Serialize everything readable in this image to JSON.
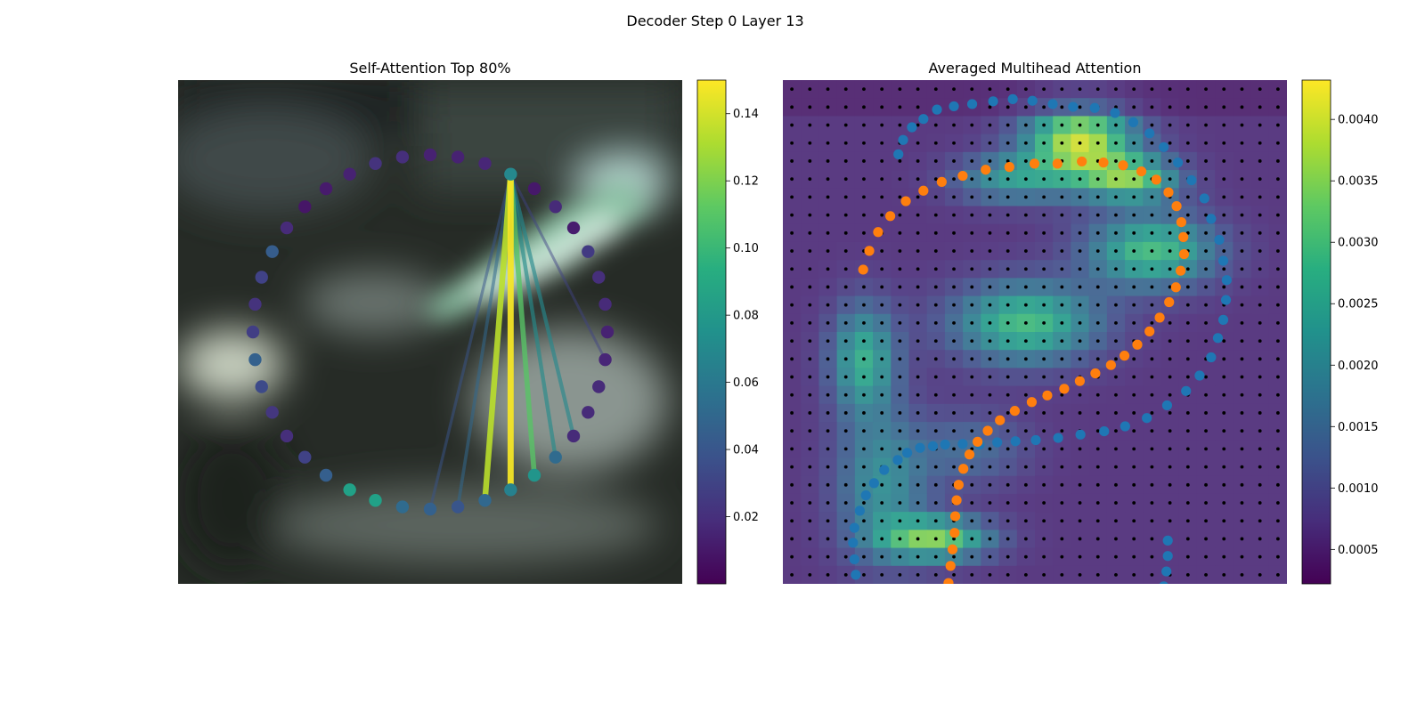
{
  "figure_title": "Decoder Step 0 Layer 13",
  "chart_data": [
    {
      "type": "network",
      "title": "Self-Attention Top 80%",
      "colormap": "viridis",
      "colorbar": {
        "ticks": [
          0.02,
          0.04,
          0.06,
          0.08,
          0.1,
          0.12,
          0.14
        ],
        "tick_labels": [
          "0.02",
          "0.04",
          "0.06",
          "0.08",
          "0.10",
          "0.12",
          "0.14"
        ],
        "range": [
          0.0,
          0.15
        ]
      },
      "node_values": [
        0.014,
        0.02,
        0.022,
        0.014,
        0.011,
        0.009,
        0.018,
        0.044,
        0.03,
        0.022,
        0.028,
        0.046,
        0.034,
        0.024,
        0.02,
        0.03,
        0.045,
        0.085,
        0.085,
        0.052,
        0.046,
        0.04,
        0.05,
        0.066,
        0.078,
        0.052,
        0.018,
        0.018,
        0.018,
        0.016,
        0.014,
        0.018,
        0.02,
        0.026,
        0.012,
        0.018,
        0.01,
        0.07,
        0.016,
        0.014
      ],
      "query_node": 37,
      "edges": [
        {
          "target": 26,
          "weight": 0.07
        },
        {
          "target": 29,
          "weight": 0.03
        },
        {
          "target": 25,
          "weight": 0.072
        },
        {
          "target": 23,
          "weight": 0.148
        },
        {
          "target": 22,
          "weight": 0.135
        },
        {
          "target": 24,
          "weight": 0.11
        },
        {
          "target": 21,
          "weight": 0.05
        },
        {
          "target": 20,
          "weight": 0.04
        }
      ]
    },
    {
      "type": "heatmap",
      "title": "Averaged Multihead Attention",
      "colormap": "viridis",
      "grid_size": 28,
      "colorbar": {
        "ticks": [
          0.0005,
          0.001,
          0.0015,
          0.002,
          0.0025,
          0.003,
          0.0035,
          0.004
        ],
        "tick_labels": [
          "0.0005",
          "0.0010",
          "0.0015",
          "0.0020",
          "0.0025",
          "0.0030",
          "0.0035",
          "0.0040"
        ],
        "range": [
          0.00022,
          0.00432
        ]
      },
      "series": [
        {
          "color": "#1f77b4",
          "points": [
            [
              10.3,
              32.2
            ],
            [
              11.0,
              34.8
            ],
            [
              12.3,
              37.1
            ],
            [
              14.0,
              38.6
            ],
            [
              16.0,
              40.3
            ],
            [
              18.5,
              40.9
            ],
            [
              21.2,
              41.3
            ],
            [
              24.3,
              41.8
            ],
            [
              27.2,
              42.2
            ],
            [
              30.1,
              41.9
            ],
            [
              33.1,
              41.3
            ],
            [
              36.1,
              40.8
            ],
            [
              39.3,
              40.6
            ],
            [
              42.3,
              39.7
            ],
            [
              45.0,
              38.0
            ],
            [
              47.4,
              36.0
            ],
            [
              49.5,
              33.5
            ],
            [
              51.6,
              30.7
            ],
            [
              53.6,
              27.5
            ],
            [
              55.5,
              24.2
            ],
            [
              56.5,
              20.5
            ],
            [
              57.7,
              16.7
            ],
            [
              58.3,
              12.9
            ],
            [
              58.8,
              9.4
            ],
            [
              58.7,
              5.8
            ],
            [
              58.3,
              2.2
            ],
            [
              57.5,
              -1.1
            ],
            [
              56.5,
              -4.6
            ],
            [
              54.8,
              -7.9
            ],
            [
              52.8,
              -10.7
            ],
            [
              50.0,
              -13.3
            ],
            [
              47.0,
              -15.6
            ],
            [
              43.8,
              -17.1
            ],
            [
              40.7,
              -18.0
            ],
            [
              37.2,
              -18.6
            ],
            [
              33.9,
              -19.2
            ],
            [
              30.6,
              -19.6
            ],
            [
              27.6,
              -19.8
            ],
            [
              24.9,
              -20.0
            ],
            [
              22.3,
              -20.4
            ],
            [
              19.8,
              -20.3
            ],
            [
              17.2,
              -20.4
            ],
            [
              15.4,
              -20.7
            ],
            [
              13.5,
              -21.0
            ],
            [
              11.6,
              -21.9
            ],
            [
              10.2,
              -23.2
            ],
            [
              8.2,
              -25.0
            ],
            [
              6.7,
              -27.4
            ],
            [
              5.5,
              -29.6
            ],
            [
              4.6,
              -32.4
            ],
            [
              3.8,
              -35.5
            ],
            [
              3.6,
              -38.2
            ],
            [
              3.8,
              -41.2
            ],
            [
              4.0,
              -44.0
            ],
            [
              5.0,
              -47.1
            ],
            [
              6.0,
              -49.9
            ],
            [
              7.3,
              -52.6
            ],
            [
              9.0,
              -55.0
            ],
            [
              11.3,
              -57.6
            ],
            [
              13.8,
              -59.5
            ],
            [
              16.4,
              -61.4
            ],
            [
              19.0,
              -62.4
            ],
            [
              21.8,
              -63.2
            ],
            [
              24.6,
              -63.6
            ],
            [
              27.3,
              -64.0
            ],
            [
              30.0,
              -63.8
            ],
            [
              32.5,
              -63.2
            ],
            [
              35.0,
              -62.6
            ],
            [
              37.4,
              -61.9
            ],
            [
              39.6,
              -60.8
            ],
            [
              41.8,
              -59.4
            ],
            [
              43.8,
              -57.7
            ],
            [
              45.6,
              -55.8
            ],
            [
              46.9,
              -53.6
            ],
            [
              48.0,
              -51.3
            ],
            [
              48.9,
              -48.8
            ],
            [
              49.5,
              -46.1
            ],
            [
              49.9,
              -43.4
            ],
            [
              50.1,
              -40.6
            ],
            [
              50.1,
              -37.8
            ]
          ]
        },
        {
          "color": "#ff7f0e",
          "points": [
            [
              5.1,
              11.3
            ],
            [
              6.0,
              14.7
            ],
            [
              7.3,
              18.1
            ],
            [
              9.1,
              21.0
            ],
            [
              11.4,
              23.7
            ],
            [
              14.0,
              25.6
            ],
            [
              16.7,
              27.2
            ],
            [
              19.8,
              28.3
            ],
            [
              23.2,
              29.4
            ],
            [
              26.7,
              29.9
            ],
            [
              30.4,
              30.5
            ],
            [
              33.8,
              30.5
            ],
            [
              37.4,
              30.9
            ],
            [
              40.6,
              30.7
            ],
            [
              43.5,
              30.2
            ],
            [
              46.2,
              29.1
            ],
            [
              48.4,
              27.6
            ],
            [
              50.2,
              25.3
            ],
            [
              51.4,
              22.8
            ],
            [
              52.1,
              19.9
            ],
            [
              52.4,
              17.2
            ],
            [
              52.5,
              14.1
            ],
            [
              52.0,
              11.1
            ],
            [
              51.3,
              8.1
            ],
            [
              50.3,
              5.4
            ],
            [
              48.9,
              2.6
            ],
            [
              47.4,
              0.1
            ],
            [
              45.6,
              -2.3
            ],
            [
              43.7,
              -4.3
            ],
            [
              41.7,
              -6.0
            ],
            [
              39.4,
              -7.5
            ],
            [
              37.1,
              -8.9
            ],
            [
              34.8,
              -10.3
            ],
            [
              32.3,
              -11.5
            ],
            [
              30.0,
              -12.7
            ],
            [
              27.5,
              -14.3
            ],
            [
              25.3,
              -16.0
            ],
            [
              23.5,
              -17.9
            ],
            [
              22.0,
              -19.9
            ],
            [
              20.8,
              -22.2
            ],
            [
              19.9,
              -24.8
            ],
            [
              19.2,
              -27.7
            ],
            [
              18.9,
              -30.5
            ],
            [
              18.7,
              -33.4
            ],
            [
              18.6,
              -36.4
            ],
            [
              18.3,
              -39.4
            ],
            [
              18.0,
              -42.4
            ],
            [
              17.7,
              -45.5
            ],
            [
              17.2,
              -48.4
            ],
            [
              16.5,
              -51.4
            ],
            [
              15.3,
              -54.3
            ],
            [
              14.0,
              -56.9
            ],
            [
              12.5,
              -59.3
            ],
            [
              10.9,
              -61.6
            ],
            [
              9.2,
              -63.4
            ],
            [
              7.3,
              -65.1
            ],
            [
              5.3,
              -66.3
            ],
            [
              3.3,
              -67.0
            ],
            [
              1.2,
              -67.5
            ],
            [
              -0.9,
              -67.8
            ]
          ]
        }
      ]
    }
  ]
}
